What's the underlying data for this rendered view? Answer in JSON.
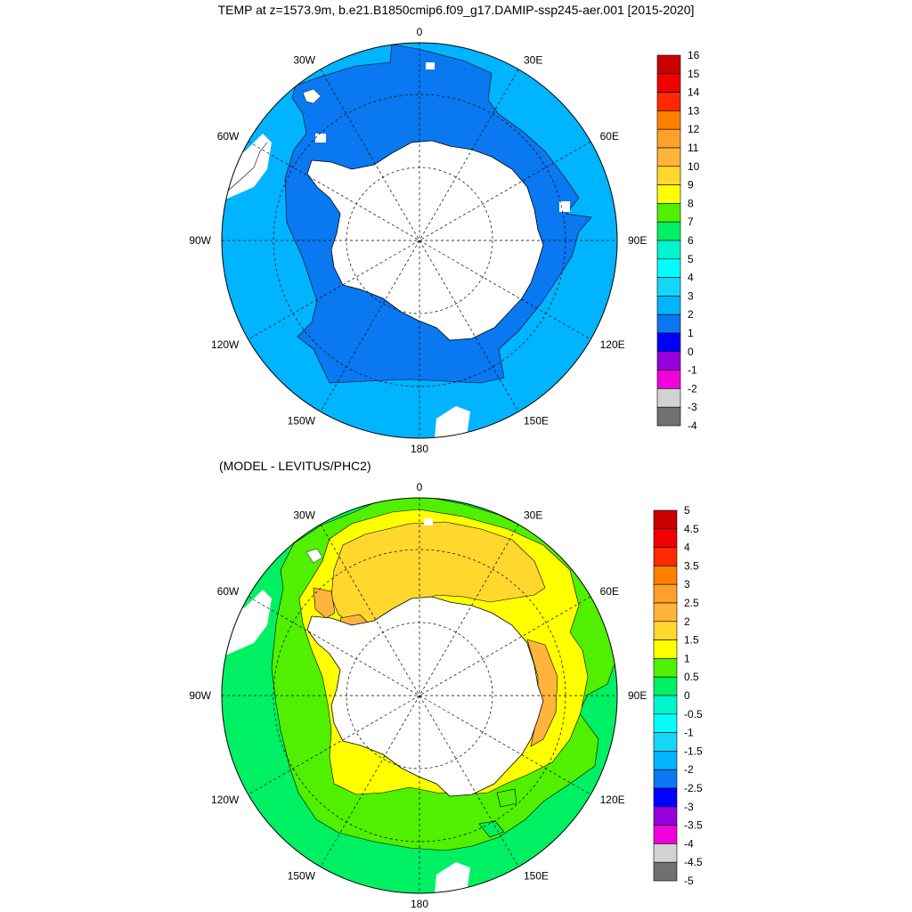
{
  "title": "TEMP at z=1573.9m, b.e21.B1850cmip6.f09_g17.DAMIP-ssp245-aer.001 [2015-2020]",
  "subtitle": "(MODEL - LEVITUS/PHC2)",
  "maps": [
    {
      "id": "model",
      "field": "TEMP",
      "longitude_labels": [
        "0",
        "30E",
        "60E",
        "90E",
        "120E",
        "150E",
        "180",
        "150W",
        "120W",
        "90W",
        "60W",
        "30W"
      ],
      "fill_colors": {
        "ocean_far": "#00b4ff",
        "ocean_near": "#0a78f0",
        "land": "#ffffff"
      },
      "colorbar": {
        "labels": [
          "16",
          "15",
          "14",
          "13",
          "12",
          "11",
          "10",
          "9",
          "8",
          "7",
          "6",
          "5",
          "4",
          "3",
          "2",
          "1",
          "0",
          "-1",
          "-2",
          "-3",
          "-4"
        ],
        "colors": [
          "#c80000",
          "#f00000",
          "#ff2800",
          "#ff8000",
          "#ffa028",
          "#ffb43c",
          "#ffd72d",
          "#ffff00",
          "#50f000",
          "#00f064",
          "#00f5cd",
          "#00ffff",
          "#14d7f5",
          "#00b4ff",
          "#0a78f0",
          "#0000ff",
          "#9600dc",
          "#f000dc",
          "#d2d2d2",
          "#707070"
        ]
      }
    },
    {
      "id": "difference",
      "field": "MODEL - LEVITUS/PHC2",
      "longitude_labels": [
        "0",
        "30E",
        "60E",
        "90E",
        "120E",
        "150E",
        "180",
        "150W",
        "120W",
        "90W",
        "60W",
        "30W"
      ],
      "fill_colors": {
        "outer": "#00f064",
        "mid": "#50f000",
        "inner": "#ffff00",
        "core": "#ffd72d",
        "warm": "#ffb43c",
        "land": "#ffffff"
      },
      "colorbar": {
        "labels": [
          "5",
          "4.5",
          "4",
          "3.5",
          "3",
          "2.5",
          "2",
          "1.5",
          "1",
          "0.5",
          "0",
          "-0.5",
          "-1",
          "-1.5",
          "-2",
          "-2.5",
          "-3",
          "-3.5",
          "-4",
          "-4.5",
          "-5"
        ],
        "colors": [
          "#c80000",
          "#f00000",
          "#ff2800",
          "#ff8000",
          "#ffa028",
          "#ffb43c",
          "#ffd72d",
          "#ffff00",
          "#50f000",
          "#00f064",
          "#00f5cd",
          "#00ffff",
          "#14d7f5",
          "#00b4ff",
          "#0a78f0",
          "#0000ff",
          "#9600dc",
          "#f000dc",
          "#d2d2d2",
          "#707070"
        ]
      }
    }
  ]
}
